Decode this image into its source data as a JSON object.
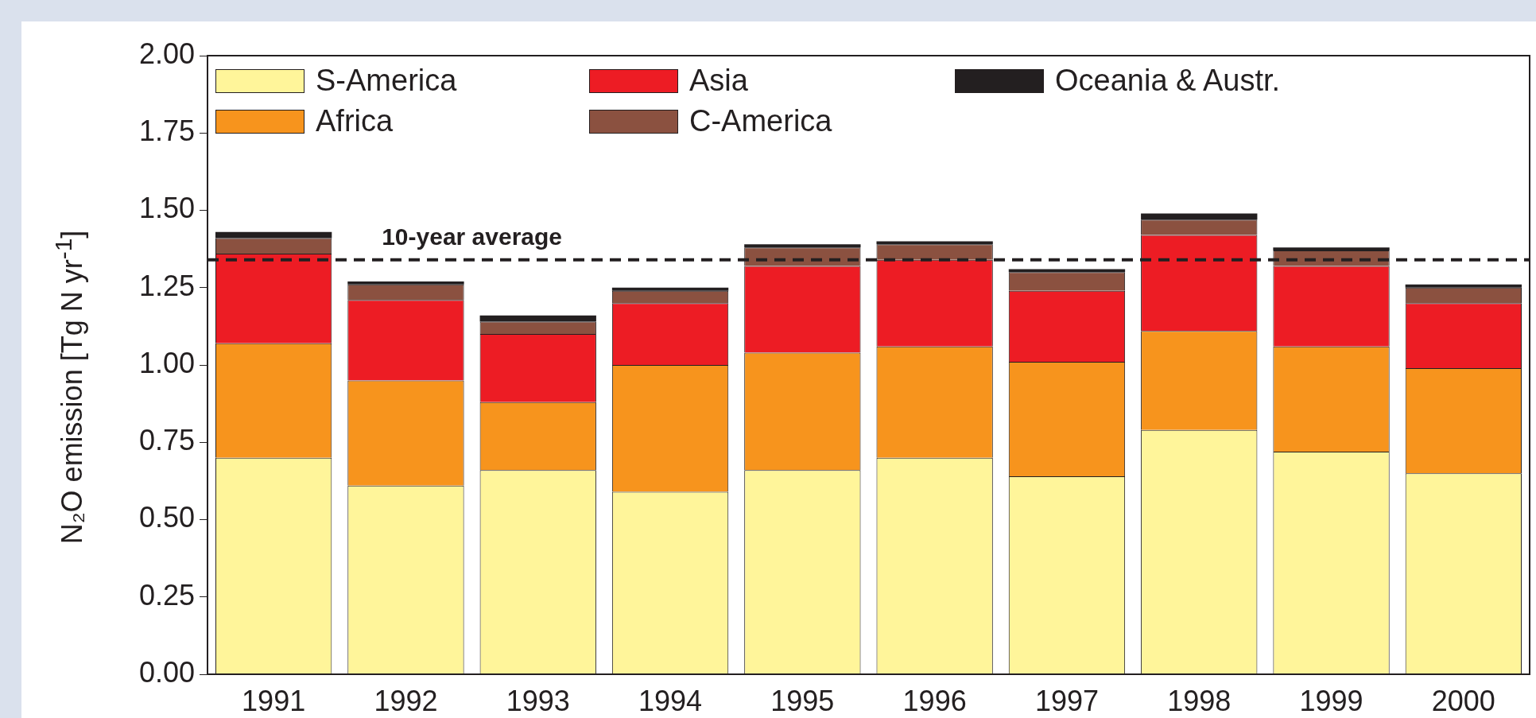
{
  "chart_data": {
    "type": "bar",
    "stacked": true,
    "ylabel": "N₂O emission [Tg N yr$^{-1}$]",
    "categories": [
      "1991",
      "1992",
      "1993",
      "1994",
      "1995",
      "1996",
      "1997",
      "1998",
      "1999",
      "2000"
    ],
    "series": [
      {
        "name": "S-America",
        "color": "#fff59a",
        "values": [
          0.7,
          0.61,
          0.66,
          0.59,
          0.66,
          0.7,
          0.64,
          0.79,
          0.72,
          0.65
        ]
      },
      {
        "name": "Africa",
        "color": "#f7941d",
        "values": [
          0.37,
          0.34,
          0.22,
          0.41,
          0.38,
          0.36,
          0.37,
          0.32,
          0.34,
          0.34
        ]
      },
      {
        "name": "Asia",
        "color": "#ed1c24",
        "values": [
          0.29,
          0.26,
          0.22,
          0.2,
          0.28,
          0.28,
          0.23,
          0.31,
          0.26,
          0.21
        ]
      },
      {
        "name": "C-America",
        "color": "#8b5140",
        "values": [
          0.05,
          0.05,
          0.04,
          0.04,
          0.06,
          0.05,
          0.06,
          0.05,
          0.05,
          0.05
        ]
      },
      {
        "name": "Oceania & Austr.",
        "color": "#231f20",
        "values": [
          0.02,
          0.01,
          0.02,
          0.01,
          0.01,
          0.01,
          0.01,
          0.02,
          0.01,
          0.01
        ]
      }
    ],
    "ylim": [
      0,
      2
    ],
    "yticks": [
      {
        "value": 0,
        "label": "0.00"
      },
      {
        "value": 0.25,
        "label": "0.25"
      },
      {
        "value": 0.5,
        "label": "0.50"
      },
      {
        "value": 0.75,
        "label": "0.75"
      },
      {
        "value": 1,
        "label": "1.00"
      },
      {
        "value": 1.25,
        "label": "1.25"
      },
      {
        "value": 1.5,
        "label": "1.50"
      },
      {
        "value": 1.75,
        "label": "1.75"
      },
      {
        "value": 2,
        "label": "2.00"
      }
    ],
    "ref_lines": [
      {
        "axis": "y",
        "value": 1.34,
        "label": "10-year average",
        "color": "#231f20",
        "line_style": "dashed"
      }
    ],
    "grid": false,
    "legend": "top left"
  }
}
